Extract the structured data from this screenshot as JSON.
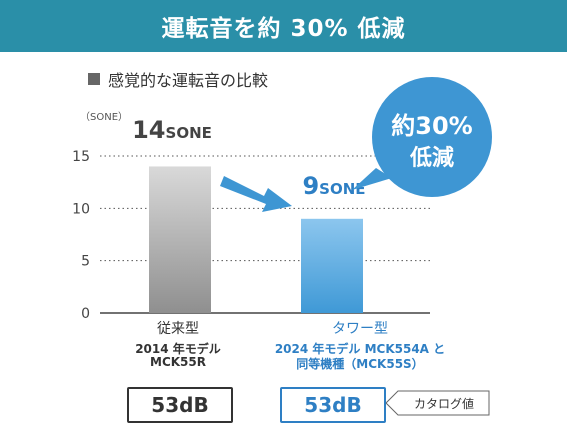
{
  "header": {
    "title": "運転音を約 30% 低減"
  },
  "section": {
    "title": "感覚的な運転音の比較"
  },
  "chart_data": {
    "type": "bar",
    "unit_label": "（SONE）",
    "ylim": [
      0,
      15
    ],
    "yticks": [
      0,
      5,
      10,
      15
    ],
    "grid": true,
    "categories": [
      "従来型",
      "タワー型"
    ],
    "values": [
      14,
      9
    ],
    "value_labels": [
      {
        "number": "14",
        "unit": "SONE"
      },
      {
        "number": "9",
        "unit": "SONE"
      }
    ],
    "colors": [
      "#9a9a9a",
      "#4a9fd8"
    ]
  },
  "callout": {
    "line1": "約30%",
    "line2": "低減",
    "color": "#3e96d3"
  },
  "products": [
    {
      "type": "従来型",
      "model_line1": "2014 年モデル",
      "model_line2": "MCK55R",
      "db": "53dB",
      "color": "#333333"
    },
    {
      "type": "タワー型",
      "model_line1": "2024 年モデル MCK554A と",
      "model_line2": "同等機種（MCK55S）",
      "db": "53dB",
      "color": "#2e7fc4"
    }
  ],
  "catalog_tag": "カタログ値"
}
